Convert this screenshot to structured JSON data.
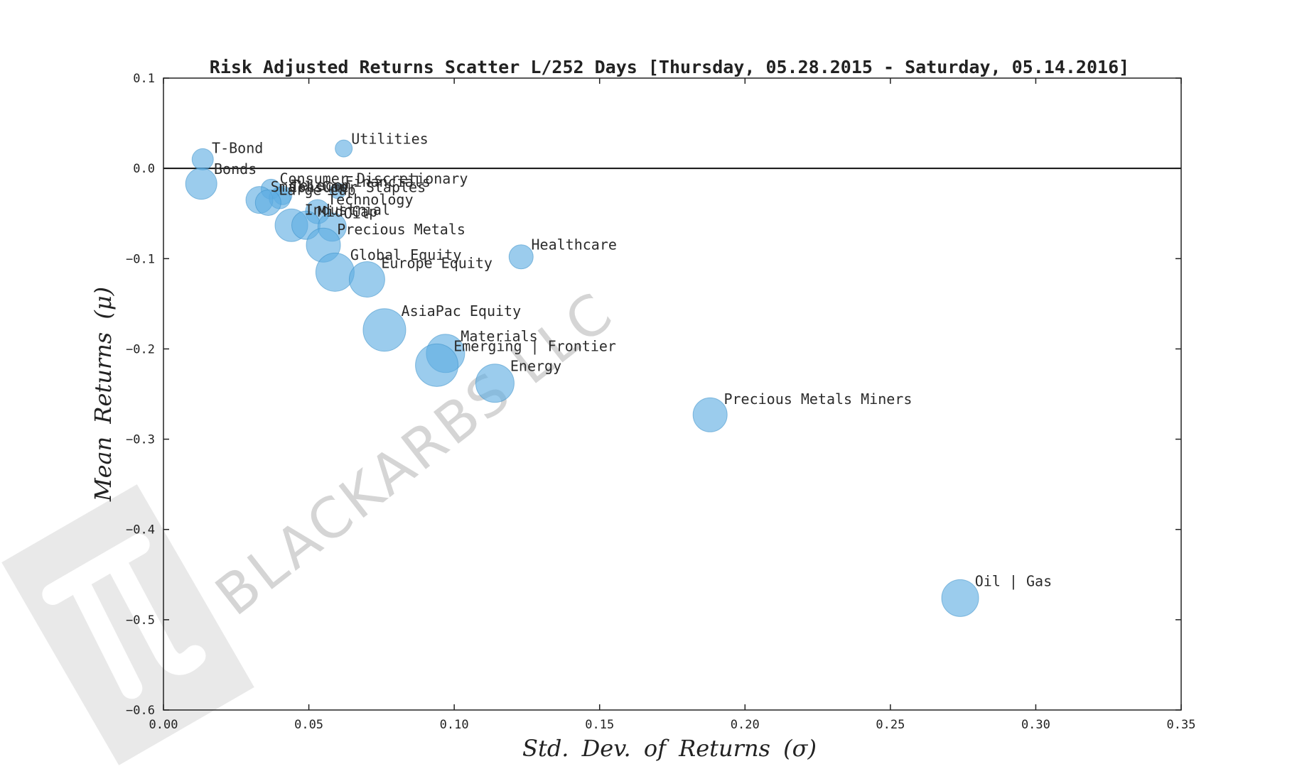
{
  "chart_data": {
    "type": "scatter",
    "title": "Risk Adjusted Returns Scatter L/252 Days [Thursday, 05.28.2015 - Saturday, 05.14.2016]",
    "xlabel": "Std. Dev. of Returns (σ)",
    "ylabel": "Mean Returns (μ)",
    "xlim": [
      0.0,
      0.35
    ],
    "ylim": [
      -0.6,
      0.1
    ],
    "x_ticks": [
      0.0,
      0.05,
      0.1,
      0.15,
      0.2,
      0.25,
      0.3,
      0.35
    ],
    "x_tick_labels": [
      "0.00",
      "0.05",
      "0.10",
      "0.15",
      "0.20",
      "0.25",
      "0.30",
      "0.35"
    ],
    "y_ticks": [
      0.1,
      0.0,
      -0.1,
      -0.2,
      -0.3,
      -0.4,
      -0.5,
      -0.6
    ],
    "y_tick_labels": [
      "0.1",
      "0.0",
      "−0.1",
      "−0.2",
      "−0.3",
      "−0.4",
      "−0.5",
      "−0.6"
    ],
    "zero_line": 0.0,
    "grid": false,
    "marker_color": "#5DADE2",
    "watermark": "BLACKARBS LLC",
    "points": [
      {
        "label": "Utilities",
        "x": 0.062,
        "y": 0.022,
        "size": 1.2
      },
      {
        "label": "T-Bond",
        "x": 0.0135,
        "y": 0.01,
        "size": 1.5
      },
      {
        "label": "Bonds",
        "x": 0.013,
        "y": -0.017,
        "size": 2.2
      },
      {
        "label": "Consumer Discretionary",
        "x": 0.037,
        "y": -0.023,
        "size": 1.4
      },
      {
        "label": "Financials",
        "x": 0.06,
        "y": -0.025,
        "size": 1.1
      },
      {
        "label": "Telecom",
        "x": 0.041,
        "y": -0.03,
        "size": 1.3
      },
      {
        "label": "Consumer Staples",
        "x": 0.04,
        "y": -0.033,
        "size": 1.5
      },
      {
        "label": "Small Cap",
        "x": 0.033,
        "y": -0.035,
        "size": 1.9
      },
      {
        "label": "Large Cap",
        "x": 0.036,
        "y": -0.038,
        "size": 1.8
      },
      {
        "label": "Technology",
        "x": 0.053,
        "y": -0.048,
        "size": 1.7
      },
      {
        "label": "Industrial",
        "x": 0.044,
        "y": -0.063,
        "size": 2.3
      },
      {
        "label": "Mid Cap",
        "x": 0.049,
        "y": -0.063,
        "size": 2.0
      },
      {
        "label": "Oil",
        "x": 0.058,
        "y": -0.065,
        "size": 2.0
      },
      {
        "label": "Precious Metals",
        "x": 0.055,
        "y": -0.085,
        "size": 2.4
      },
      {
        "label": "Healthcare",
        "x": 0.123,
        "y": -0.098,
        "size": 1.7
      },
      {
        "label": "Global Equity",
        "x": 0.059,
        "y": -0.115,
        "size": 2.7
      },
      {
        "label": "Europe Equity",
        "x": 0.07,
        "y": -0.123,
        "size": 2.5
      },
      {
        "label": "AsiaPac Equity",
        "x": 0.076,
        "y": -0.179,
        "size": 3.0
      },
      {
        "label": "Materials",
        "x": 0.097,
        "y": -0.205,
        "size": 2.7
      },
      {
        "label": "Emerging | Frontier",
        "x": 0.094,
        "y": -0.218,
        "size": 3.0
      },
      {
        "label": "Energy",
        "x": 0.114,
        "y": -0.238,
        "size": 2.7
      },
      {
        "label": "Precious Metals Miners",
        "x": 0.188,
        "y": -0.273,
        "size": 2.4
      },
      {
        "label": "Oil | Gas",
        "x": 0.274,
        "y": -0.476,
        "size": 2.6
      }
    ]
  }
}
